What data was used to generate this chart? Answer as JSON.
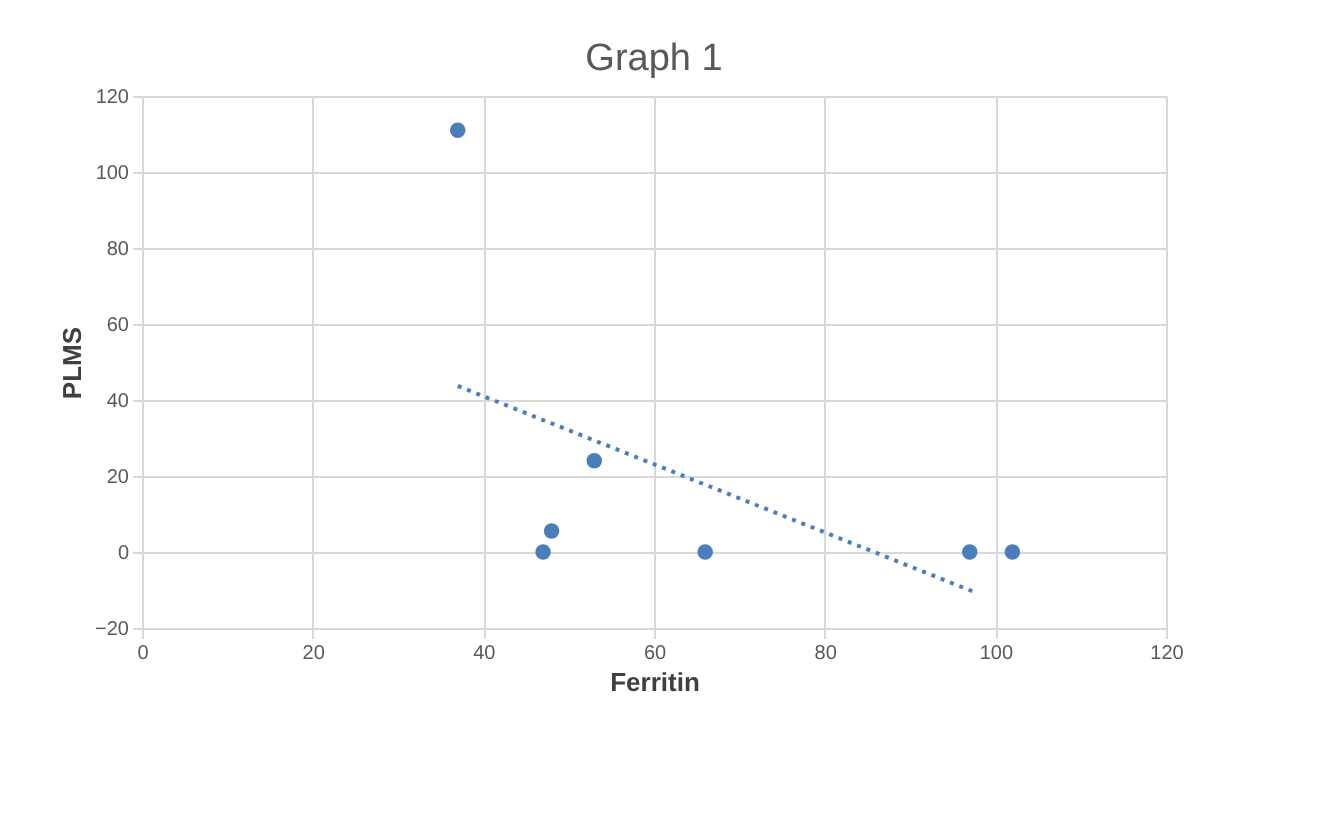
{
  "chart_data": {
    "type": "scatter",
    "title": "Graph 1",
    "xlabel": "Ferritin",
    "ylabel": "PLMS",
    "xlim": [
      0,
      120
    ],
    "xticks": [
      0,
      20,
      40,
      60,
      80,
      100,
      120
    ],
    "ylim": [
      -20,
      120
    ],
    "yticks": [
      -20,
      0,
      20,
      40,
      60,
      80,
      100,
      120
    ],
    "grid": true,
    "series": [
      {
        "type": "scatter",
        "marker": "circle",
        "color": "#4a7ebb",
        "x": [
          37,
          47,
          48,
          53,
          66,
          97,
          102
        ],
        "values": [
          111,
          0,
          5.5,
          24,
          0,
          0,
          0
        ]
      },
      {
        "type": "line",
        "color": "#4a7ebb",
        "line_style": "dotted",
        "x": [
          37,
          97.5
        ],
        "values": [
          43.7,
          -10.5
        ]
      }
    ]
  }
}
